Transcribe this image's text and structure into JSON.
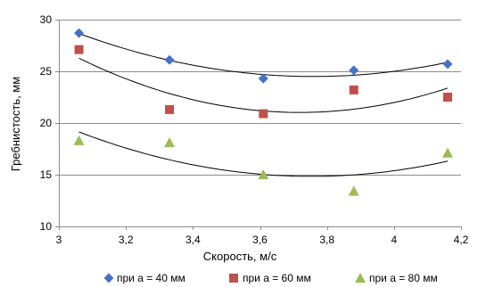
{
  "chart_data": {
    "type": "scatter",
    "xlabel": "Скорость, м/с",
    "ylabel": "Гребнистость, мм",
    "xlim": [
      3,
      4.2
    ],
    "ylim": [
      10,
      30
    ],
    "x_ticks": [
      "3",
      "3,2",
      "3,4",
      "3,6",
      "3,8",
      "4",
      "4,2"
    ],
    "x_tick_values": [
      3,
      3.2,
      3.4,
      3.6,
      3.8,
      4,
      4.2
    ],
    "y_ticks": [
      "10",
      "15",
      "20",
      "25",
      "30"
    ],
    "y_tick_values": [
      10,
      15,
      20,
      25,
      30
    ],
    "grid": "horizontal",
    "legend_position": "bottom",
    "trendline": "polynomial-2",
    "series": [
      {
        "name": "при а = 40 мм",
        "marker": "diamond",
        "color": "#4472C4",
        "x": [
          3.06,
          3.33,
          3.61,
          3.88,
          4.16
        ],
        "y": [
          28.7,
          26.1,
          24.3,
          25.1,
          25.7
        ]
      },
      {
        "name": "при а = 60 мм",
        "marker": "square",
        "color": "#C0504D",
        "x": [
          3.06,
          3.33,
          3.61,
          3.88,
          4.16
        ],
        "y": [
          27.1,
          21.3,
          20.9,
          23.2,
          22.5
        ]
      },
      {
        "name": "при а = 80 мм",
        "marker": "triangle",
        "color": "#9BBB59",
        "x": [
          3.06,
          3.33,
          3.61,
          3.88,
          4.16
        ],
        "y": [
          18.3,
          18.1,
          15.0,
          13.4,
          17.1
        ]
      }
    ]
  }
}
